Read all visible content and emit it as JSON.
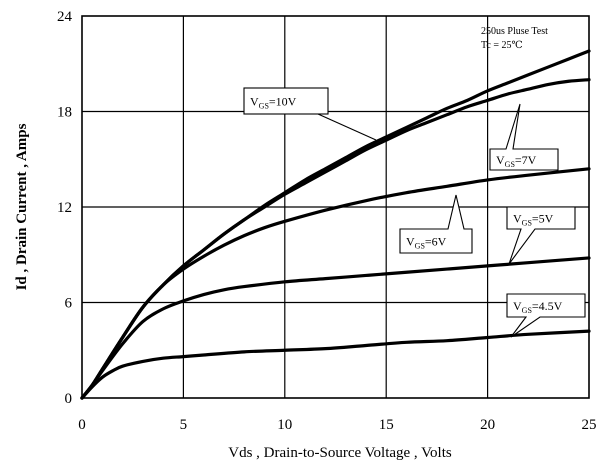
{
  "chart_data": {
    "type": "line",
    "xlabel": "Vds , Drain-to-Source Voltage , Volts",
    "ylabel": "Id , Drain Current , Amps",
    "xlim": [
      0,
      25
    ],
    "ylim": [
      0,
      24
    ],
    "x_ticks": [
      "0",
      "5",
      "10",
      "15",
      "20",
      "25"
    ],
    "y_ticks": [
      "0",
      "6",
      "12",
      "18",
      "24"
    ],
    "x_tick_values": [
      0,
      5,
      10,
      15,
      20,
      25
    ],
    "y_tick_values": [
      0,
      6,
      12,
      18,
      24
    ],
    "grid": true,
    "annotation_lines": [
      "250us Pluse Test",
      "Tc = 25℃"
    ],
    "series": [
      {
        "callout_prefix": "V",
        "callout_sub": "GS",
        "callout_value": "=10V",
        "x": [
          0,
          0.5,
          1,
          2,
          3,
          4,
          5,
          6,
          7,
          8,
          9,
          10,
          11,
          12,
          13,
          14,
          15,
          16,
          17,
          18,
          19,
          20,
          21,
          22,
          23,
          24,
          25
        ],
        "y": [
          0,
          0.8,
          1.8,
          3.8,
          5.7,
          7.1,
          8.3,
          9.3,
          10.3,
          11.2,
          12.1,
          12.9,
          13.7,
          14.4,
          15.1,
          15.8,
          16.4,
          17.0,
          17.6,
          18.2,
          18.7,
          19.3,
          19.8,
          20.3,
          20.8,
          21.3,
          21.8
        ]
      },
      {
        "callout_prefix": "V",
        "callout_sub": "GS",
        "callout_value": "=7V",
        "x": [
          0,
          0.5,
          1,
          2,
          3,
          4,
          5,
          6,
          7,
          8,
          9,
          10,
          11,
          12,
          13,
          14,
          15,
          16,
          17,
          18,
          19,
          20,
          21,
          22,
          23,
          24,
          25
        ],
        "y": [
          0,
          0.8,
          1.8,
          3.8,
          5.7,
          7.1,
          8.3,
          9.3,
          10.3,
          11.2,
          12.0,
          12.8,
          13.5,
          14.2,
          14.9,
          15.6,
          16.2,
          16.8,
          17.3,
          17.8,
          18.3,
          18.7,
          19.1,
          19.4,
          19.7,
          19.9,
          20.0
        ]
      },
      {
        "callout_prefix": "V",
        "callout_sub": "GS",
        "callout_value": "=6V",
        "x": [
          0,
          0.5,
          1,
          2,
          3,
          4,
          5,
          6,
          7,
          8,
          9,
          10,
          12,
          14,
          16,
          18,
          20,
          22,
          25
        ],
        "y": [
          0,
          0.8,
          1.8,
          3.8,
          5.7,
          7.1,
          8.1,
          8.9,
          9.6,
          10.2,
          10.7,
          11.1,
          11.8,
          12.4,
          12.9,
          13.3,
          13.7,
          14.0,
          14.4
        ]
      },
      {
        "callout_prefix": "V",
        "callout_sub": "GS",
        "callout_value": "=5V",
        "x": [
          0,
          0.5,
          1,
          2,
          3,
          4,
          5,
          6,
          7,
          8,
          10,
          12,
          14,
          16,
          18,
          20,
          22,
          25
        ],
        "y": [
          0,
          0.8,
          1.7,
          3.4,
          4.8,
          5.6,
          6.1,
          6.5,
          6.8,
          7.0,
          7.3,
          7.5,
          7.7,
          7.9,
          8.1,
          8.3,
          8.5,
          8.8
        ]
      },
      {
        "callout_prefix": "V",
        "callout_sub": "GS",
        "callout_value": "=4.5V",
        "x": [
          0,
          0.5,
          1,
          1.5,
          2,
          3,
          4,
          5,
          6,
          8,
          10,
          12,
          14,
          16,
          18,
          20,
          22,
          25
        ],
        "y": [
          0,
          0.7,
          1.3,
          1.7,
          2.0,
          2.3,
          2.5,
          2.6,
          2.7,
          2.9,
          3.0,
          3.1,
          3.3,
          3.5,
          3.6,
          3.8,
          4.0,
          4.2
        ]
      }
    ]
  }
}
